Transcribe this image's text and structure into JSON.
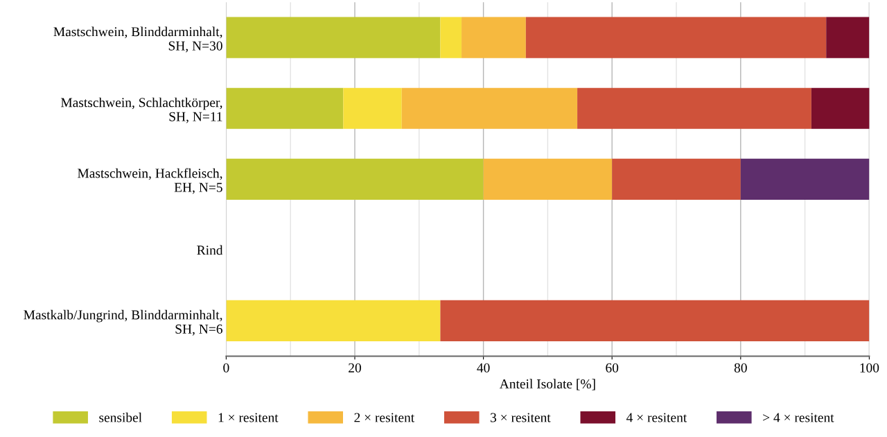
{
  "chart_data": {
    "type": "bar",
    "orientation": "horizontal",
    "stacked": true,
    "categories": [
      "Mastschwein, Blinddarminhalt,\nSH, N=30",
      "Mastschwein, Schlachtkörper,\nSH, N=11",
      "Mastschwein, Hackfleisch,\nEH, N=5",
      "Rind",
      "Mastkalb/Jungrind, Blinddarminhalt,\nSH, N=6"
    ],
    "series": [
      {
        "name": "sensibel",
        "color": "#c3c932",
        "values": [
          33.3,
          18.2,
          40,
          null,
          0
        ]
      },
      {
        "name": "1 × resitent",
        "color": "#f7df3a",
        "values": [
          3.3,
          9.1,
          0,
          null,
          33.3
        ]
      },
      {
        "name": "2 × resitent",
        "color": "#f6b93f",
        "values": [
          10,
          27.3,
          20,
          null,
          0
        ]
      },
      {
        "name": "3 × resitent",
        "color": "#cf523a",
        "values": [
          46.7,
          36.4,
          20,
          null,
          66.7
        ]
      },
      {
        "name": "4 × resitent",
        "color": "#7b0f2c",
        "values": [
          6.7,
          9.1,
          0,
          null,
          0
        ]
      },
      {
        "name": "> 4 × resitent",
        "color": "#5e2e6c",
        "values": [
          0,
          0,
          20,
          null,
          0
        ]
      }
    ],
    "xlabel": "Anteil Isolate [%]",
    "xlim": [
      0,
      100
    ],
    "xticks": [
      0,
      20,
      40,
      60,
      80,
      100
    ],
    "grid": "x",
    "legend": "bottom"
  }
}
